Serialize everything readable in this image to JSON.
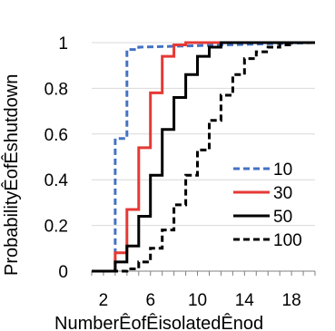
{
  "chart_data": {
    "type": "line",
    "step": true,
    "xlabel": "NumberÊofÊisolatedÊnod",
    "ylabel": "ProbabilityÊofÊshutdown",
    "xlim": [
      1,
      20
    ],
    "ylim": [
      0,
      1
    ],
    "xticks": [
      2,
      6,
      10,
      14,
      18
    ],
    "xtick_labels": [
      "2",
      "6",
      "10",
      "14",
      "18"
    ],
    "yticks": [
      0,
      0.2,
      0.4,
      0.6,
      0.8,
      1
    ],
    "ytick_labels": [
      "0",
      "0.2",
      "0.4",
      "0.6",
      "0.8",
      "1"
    ],
    "grid": "horizontal",
    "legend": "right",
    "series": [
      {
        "name": "10",
        "color": "#4472c4",
        "dash": "dashed",
        "points": [
          [
            1,
            0
          ],
          [
            3,
            0
          ],
          [
            3,
            0.58
          ],
          [
            4,
            0.58
          ],
          [
            4,
            0.97
          ],
          [
            5,
            0.97
          ],
          [
            5,
            0.98
          ],
          [
            20,
            1
          ]
        ]
      },
      {
        "name": "30",
        "color": "#e53935",
        "dash": "solid",
        "points": [
          [
            1,
            0
          ],
          [
            3,
            0
          ],
          [
            3,
            0.08
          ],
          [
            4,
            0.08
          ],
          [
            4,
            0.27
          ],
          [
            5,
            0.27
          ],
          [
            5,
            0.54
          ],
          [
            6,
            0.54
          ],
          [
            6,
            0.78
          ],
          [
            7,
            0.78
          ],
          [
            7,
            0.94
          ],
          [
            8,
            0.94
          ],
          [
            8,
            0.99
          ],
          [
            9,
            0.99
          ],
          [
            9,
            1
          ],
          [
            20,
            1
          ]
        ]
      },
      {
        "name": "50",
        "color": "#000000",
        "dash": "solid",
        "points": [
          [
            1,
            0
          ],
          [
            3,
            0
          ],
          [
            3,
            0.04
          ],
          [
            4,
            0.04
          ],
          [
            4,
            0.11
          ],
          [
            5,
            0.11
          ],
          [
            5,
            0.24
          ],
          [
            6,
            0.24
          ],
          [
            6,
            0.42
          ],
          [
            7,
            0.42
          ],
          [
            7,
            0.62
          ],
          [
            8,
            0.62
          ],
          [
            8,
            0.76
          ],
          [
            9,
            0.76
          ],
          [
            9,
            0.86
          ],
          [
            10,
            0.86
          ],
          [
            10,
            0.94
          ],
          [
            11,
            0.94
          ],
          [
            11,
            0.98
          ],
          [
            12,
            0.98
          ],
          [
            12,
            1
          ],
          [
            20,
            1
          ]
        ]
      },
      {
        "name": "100",
        "color": "#000000",
        "dash": "dashed",
        "points": [
          [
            1,
            0
          ],
          [
            4,
            0
          ],
          [
            4,
            0.01
          ],
          [
            5,
            0.01
          ],
          [
            5,
            0.04
          ],
          [
            6,
            0.04
          ],
          [
            6,
            0.1
          ],
          [
            7,
            0.1
          ],
          [
            7,
            0.18
          ],
          [
            8,
            0.18
          ],
          [
            8,
            0.29
          ],
          [
            9,
            0.29
          ],
          [
            9,
            0.42
          ],
          [
            10,
            0.42
          ],
          [
            10,
            0.53
          ],
          [
            11,
            0.53
          ],
          [
            11,
            0.66
          ],
          [
            12,
            0.66
          ],
          [
            12,
            0.77
          ],
          [
            13,
            0.77
          ],
          [
            13,
            0.86
          ],
          [
            14,
            0.86
          ],
          [
            14,
            0.93
          ],
          [
            15,
            0.93
          ],
          [
            15,
            0.96
          ],
          [
            16,
            0.96
          ],
          [
            16,
            0.98
          ],
          [
            17,
            0.98
          ],
          [
            17,
            0.99
          ],
          [
            18,
            0.99
          ],
          [
            18,
            1
          ],
          [
            20,
            1
          ]
        ]
      }
    ]
  }
}
